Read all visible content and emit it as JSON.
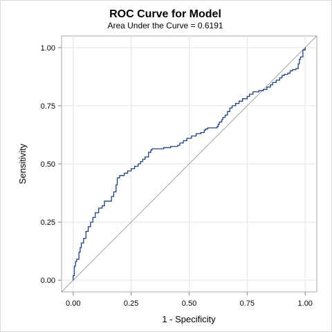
{
  "chart_data": {
    "type": "line",
    "title": "ROC Curve for Model",
    "subtitle": "Area Under the Curve = 0.6191",
    "xlabel": "1 - Specificity",
    "ylabel": "Sensitivity",
    "xlim": [
      -0.05,
      1.05
    ],
    "ylim": [
      -0.05,
      1.05
    ],
    "x_ticks": [
      "0.00",
      "0.25",
      "0.50",
      "0.75",
      "1.00"
    ],
    "y_ticks": [
      "0.00",
      "0.25",
      "0.50",
      "0.75",
      "1.00"
    ],
    "x_tick_values": [
      0,
      0.25,
      0.5,
      0.75,
      1
    ],
    "y_tick_values": [
      0,
      0.25,
      0.5,
      0.75,
      1
    ],
    "grid": true,
    "line_color": "#1f3f7a",
    "reference_line_color": "#a0a0a0",
    "series": [
      {
        "values": [
          [
            0,
            0
          ],
          [
            0,
            0.02
          ],
          [
            0.005,
            0.06
          ],
          [
            0.01,
            0.08
          ],
          [
            0.015,
            0.09
          ],
          [
            0.02,
            0.09
          ],
          [
            0.025,
            0.12
          ],
          [
            0.03,
            0.14
          ],
          [
            0.035,
            0.16
          ],
          [
            0.045,
            0.18
          ],
          [
            0.055,
            0.21
          ],
          [
            0.065,
            0.23
          ],
          [
            0.075,
            0.25
          ],
          [
            0.085,
            0.27
          ],
          [
            0.095,
            0.29
          ],
          [
            0.11,
            0.31
          ],
          [
            0.125,
            0.32
          ],
          [
            0.135,
            0.34
          ],
          [
            0.16,
            0.34
          ],
          [
            0.165,
            0.36
          ],
          [
            0.175,
            0.38
          ],
          [
            0.185,
            0.41
          ],
          [
            0.19,
            0.44
          ],
          [
            0.2,
            0.45
          ],
          [
            0.21,
            0.45
          ],
          [
            0.22,
            0.46
          ],
          [
            0.235,
            0.47
          ],
          [
            0.25,
            0.48
          ],
          [
            0.265,
            0.49
          ],
          [
            0.28,
            0.5
          ],
          [
            0.29,
            0.51
          ],
          [
            0.3,
            0.52
          ],
          [
            0.31,
            0.53
          ],
          [
            0.325,
            0.55
          ],
          [
            0.335,
            0.56
          ],
          [
            0.34,
            0.565
          ],
          [
            0.37,
            0.565
          ],
          [
            0.39,
            0.57
          ],
          [
            0.405,
            0.57
          ],
          [
            0.42,
            0.575
          ],
          [
            0.44,
            0.575
          ],
          [
            0.45,
            0.58
          ],
          [
            0.46,
            0.59
          ],
          [
            0.475,
            0.6
          ],
          [
            0.49,
            0.61
          ],
          [
            0.51,
            0.62
          ],
          [
            0.53,
            0.63
          ],
          [
            0.55,
            0.635
          ],
          [
            0.565,
            0.645
          ],
          [
            0.57,
            0.65
          ],
          [
            0.58,
            0.655
          ],
          [
            0.6,
            0.655
          ],
          [
            0.62,
            0.66
          ],
          [
            0.625,
            0.67
          ],
          [
            0.63,
            0.68
          ],
          [
            0.64,
            0.69
          ],
          [
            0.645,
            0.7
          ],
          [
            0.655,
            0.71
          ],
          [
            0.665,
            0.725
          ],
          [
            0.675,
            0.74
          ],
          [
            0.685,
            0.75
          ],
          [
            0.7,
            0.76
          ],
          [
            0.715,
            0.77
          ],
          [
            0.73,
            0.78
          ],
          [
            0.75,
            0.79
          ],
          [
            0.76,
            0.8
          ],
          [
            0.775,
            0.81
          ],
          [
            0.8,
            0.815
          ],
          [
            0.82,
            0.82
          ],
          [
            0.835,
            0.83
          ],
          [
            0.85,
            0.84
          ],
          [
            0.86,
            0.85
          ],
          [
            0.875,
            0.86
          ],
          [
            0.89,
            0.87
          ],
          [
            0.9,
            0.88
          ],
          [
            0.91,
            0.885
          ],
          [
            0.925,
            0.89
          ],
          [
            0.935,
            0.9
          ],
          [
            0.945,
            0.905
          ],
          [
            0.96,
            0.91
          ],
          [
            0.97,
            0.93
          ],
          [
            0.975,
            0.95
          ],
          [
            0.98,
            0.96
          ],
          [
            0.99,
            0.99
          ],
          [
            1,
            1
          ]
        ]
      }
    ]
  }
}
